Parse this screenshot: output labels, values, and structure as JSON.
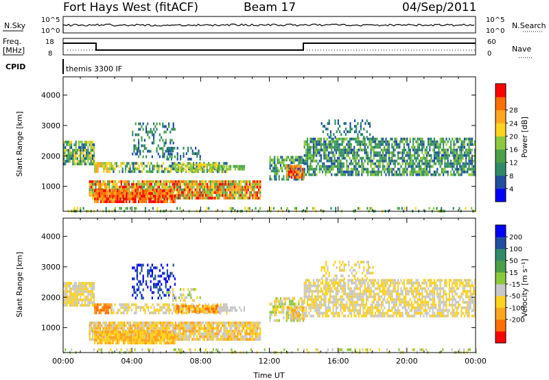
{
  "header": {
    "station": "Fort Hays West (fitACF)",
    "beam": "Beam 17",
    "date": "04/Sep/2011"
  },
  "top_panels": {
    "nsky_label": "N.Sky",
    "nsky_ticks": [
      "10^5",
      "10^0"
    ],
    "nsearch_label": "N.Search",
    "nsearch_ticks": [
      "10^5",
      "10^0"
    ],
    "freq_label": "Freq.",
    "freq_unit": "[MHz]",
    "freq_ticks": [
      "18",
      "8"
    ],
    "nave_label": "Nave",
    "nave_ticks": [
      "60",
      "0"
    ],
    "cpid_label": "CPID",
    "cpid_text": "themis 3300 IF"
  },
  "colors": {
    "power": [
      "#0000ff",
      "#1e4fa0",
      "#2e8b6a",
      "#4aa04a",
      "#8cc83c",
      "#ffd21e",
      "#ffa51e",
      "#ff6e00",
      "#ff0000"
    ],
    "velocity": [
      "#0000ff",
      "#1e4fa0",
      "#2e8b6a",
      "#4aa04a",
      "#8cc83c",
      "#c8c8c8",
      "#ffd21e",
      "#ffa51e",
      "#ff6e00",
      "#ff0000"
    ]
  },
  "chart_data": [
    {
      "type": "heatmap",
      "name": "power",
      "ylabel": "Slant Range [km]",
      "xlabel": "",
      "ylim": [
        180,
        4600
      ],
      "yticks": [
        "1000",
        "2000",
        "3000",
        "4000"
      ],
      "xlim": [
        0,
        24
      ],
      "colorbar_label": "Power [dB]",
      "colorbar_ticks": [
        "4",
        "8",
        "12",
        "16",
        "20",
        "24",
        "28"
      ]
    },
    {
      "type": "heatmap",
      "name": "velocity",
      "ylabel": "Slant Range [km]",
      "xlabel": "Time UT",
      "ylim": [
        180,
        4600
      ],
      "yticks": [
        "1000",
        "2000",
        "3000",
        "4000"
      ],
      "xlim": [
        0,
        24
      ],
      "xticks": [
        "00:00",
        "04:00",
        "08:00",
        "12:00",
        "16:00",
        "20:00",
        "00:00"
      ],
      "colorbar_label": "Velocity [m s⁻¹]",
      "colorbar_ticks": [
        "200",
        "100",
        "50",
        "15",
        "-15",
        "-50",
        "-100",
        "-200"
      ]
    }
  ]
}
